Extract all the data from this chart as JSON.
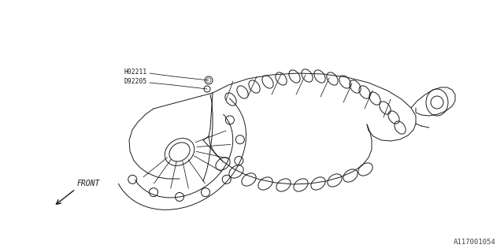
{
  "bg_color": "#ffffff",
  "line_color": "#1a1a1a",
  "line_width": 0.7,
  "label1": "H02211",
  "label2": "D92205",
  "front_label": "FRONT",
  "diagram_id": "A117001054",
  "figsize": [
    6.4,
    3.2
  ],
  "dpi": 100
}
